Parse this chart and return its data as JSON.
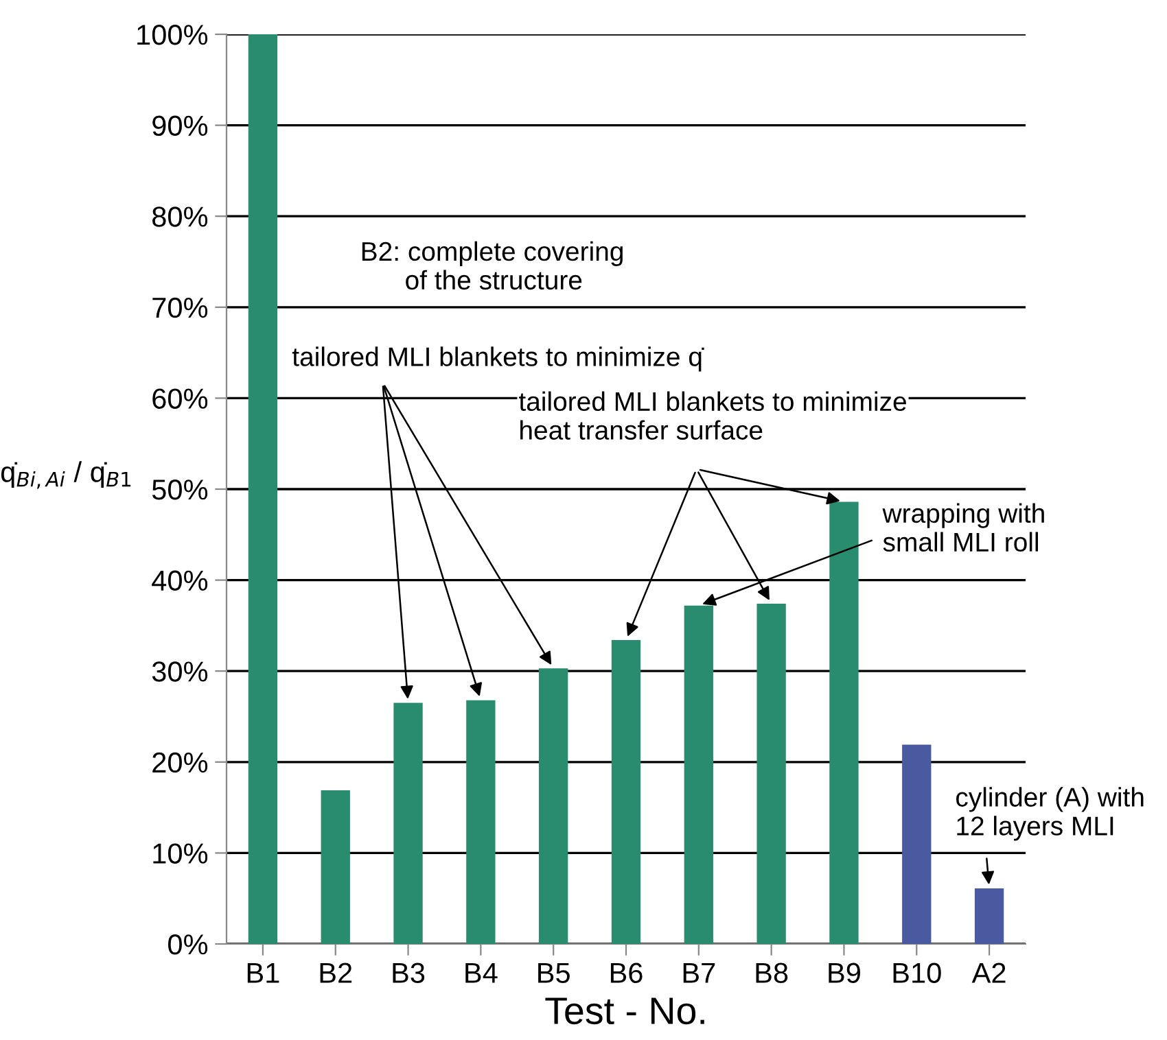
{
  "chart_data": {
    "type": "bar",
    "xlabel": "Test - No.",
    "ylabel": "q̇$_{Bi,Ai}$ / q̇$_{B1}$",
    "categories": [
      "B1",
      "B2",
      "B3",
      "B4",
      "B5",
      "B6",
      "B7",
      "B8",
      "B9",
      "B10",
      "A2"
    ],
    "values": [
      100,
      16.9,
      26.5,
      26.8,
      30.3,
      33.4,
      37.2,
      37.4,
      48.6,
      21.9,
      6.1
    ],
    "colors": [
      "#2a8c6e",
      "#2a8c6e",
      "#2a8c6e",
      "#2a8c6e",
      "#2a8c6e",
      "#2a8c6e",
      "#2a8c6e",
      "#2a8c6e",
      "#2a8c6e",
      "#4a5aa0",
      "#4a5aa0"
    ],
    "ylim": [
      0,
      100
    ],
    "yticks": [
      {
        "value": 0,
        "label": "0%"
      },
      {
        "value": 10,
        "label": "10%"
      },
      {
        "value": 20,
        "label": "20%"
      },
      {
        "value": 30,
        "label": "30%"
      },
      {
        "value": 40,
        "label": "40%"
      },
      {
        "value": 50,
        "label": "50%"
      },
      {
        "value": 60,
        "label": "60%"
      },
      {
        "value": 70,
        "label": "70%"
      },
      {
        "value": 80,
        "label": "80%"
      },
      {
        "value": 90,
        "label": "90%"
      },
      {
        "value": 100,
        "label": "100%"
      }
    ],
    "grid": "y",
    "annotations": [
      "B2: complete covering\n      of the structure",
      {
        "text": "tailored MLI blankets to minimize q̇",
        "x": "B3",
        "y": 26.5
      },
      {
        "text": "tailored MLI blankets to minimize\nheat transfer surface",
        "x": "B6",
        "y": 33.4
      },
      {
        "text": "wrapping with\nsmall MLI roll",
        "x": "B7",
        "y": 37.2
      },
      {
        "text": "cylinder (A) with\n12 layers MLI",
        "x": "A2",
        "y": 6.1
      }
    ]
  }
}
